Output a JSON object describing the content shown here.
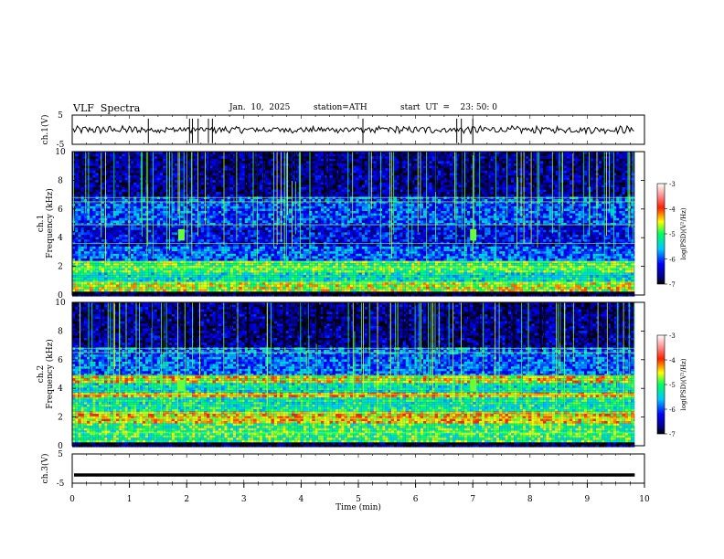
{
  "header": {
    "title": "VLF  Spectra",
    "date": "Jan.  10,  2025",
    "station": "station=ATH",
    "start": "start  UT  =    23: 50: 0"
  },
  "chart_data": [
    {
      "type": "line",
      "panel": "ch1-waveform",
      "ylabel": "ch.1(V)",
      "ylim": [
        -5,
        5
      ],
      "yticks": [
        "5",
        "-5"
      ],
      "xlim": [
        0,
        10
      ],
      "x_data_end_min": 9.83,
      "baseline_v": 0.0,
      "noise_amplitude_v": 1.0,
      "spikes_min": [
        1.33,
        2.05,
        2.1,
        2.2,
        2.38,
        2.45,
        5.08,
        6.72,
        6.8,
        7.0
      ]
    },
    {
      "type": "heatmap",
      "panel": "ch1-spectrogram",
      "ylabel": "ch.1\nFrequency  (kHz)",
      "ylim": [
        0,
        10
      ],
      "yticks": [
        "0",
        "2",
        "4",
        "6",
        "8",
        "10"
      ],
      "xlim": [
        0,
        10
      ],
      "x_data_end_min": 9.83,
      "colorbar": {
        "label": "log(PSD)(V²/Hz)",
        "range": [
          -7,
          -3
        ],
        "ticks": [
          "-3",
          "-4",
          "-5",
          "-6",
          "-7"
        ]
      },
      "bands_khz": [
        {
          "f": [
            0,
            0.25
          ],
          "log_psd": -7
        },
        {
          "f": [
            0.25,
            0.9
          ],
          "log_psd": -4.6
        },
        {
          "f": [
            0.9,
            1.5
          ],
          "log_psd": -5.3
        },
        {
          "f": [
            1.5,
            2.4
          ],
          "log_psd": -4.9
        },
        {
          "f": [
            2.4,
            3.3
          ],
          "log_psd": -5.9
        },
        {
          "f": [
            3.3,
            4.8
          ],
          "log_psd": -6.3
        },
        {
          "f": [
            4.8,
            6.8
          ],
          "log_psd": -6.0
        },
        {
          "f": [
            6.8,
            10
          ],
          "log_psd": -6.6
        }
      ],
      "bursts_min": [
        1.9,
        7.0
      ]
    },
    {
      "type": "heatmap",
      "panel": "ch2-spectrogram",
      "ylabel": "ch.2\nFrequency  (kHz)",
      "ylim": [
        0,
        10
      ],
      "yticks": [
        "0",
        "2",
        "4",
        "6",
        "8",
        "10"
      ],
      "xlim": [
        0,
        10
      ],
      "x_data_end_min": 9.83,
      "colorbar": {
        "label": "log(PSD)(V²/Hz)",
        "range": [
          -7,
          -3
        ],
        "ticks": [
          "-3",
          "-4",
          "-5",
          "-6",
          "-7"
        ]
      },
      "bands_khz": [
        {
          "f": [
            0,
            0.3
          ],
          "log_psd": -7
        },
        {
          "f": [
            0.3,
            1.6
          ],
          "log_psd": -5.0
        },
        {
          "f": [
            1.6,
            2.3
          ],
          "log_psd": -4.4
        },
        {
          "f": [
            2.3,
            3.4
          ],
          "log_psd": -5.2
        },
        {
          "f": [
            3.4,
            3.7
          ],
          "log_psd": -4.3
        },
        {
          "f": [
            3.7,
            4.4
          ],
          "log_psd": -5.3
        },
        {
          "f": [
            4.4,
            4.8
          ],
          "log_psd": -4.5
        },
        {
          "f": [
            4.8,
            6.8
          ],
          "log_psd": -5.9
        },
        {
          "f": [
            6.8,
            10
          ],
          "log_psd": -6.6
        }
      ],
      "bursts_min": [
        1.9,
        7.0
      ]
    },
    {
      "type": "line",
      "panel": "ch3-waveform",
      "ylabel": "ch.3(V)",
      "ylim": [
        -5,
        5
      ],
      "yticks": [
        "5",
        "-5"
      ],
      "xlim": [
        0,
        10
      ],
      "x_data_end_min": 9.83,
      "level_v": -2.2,
      "xlabel": "Time  (min)",
      "xticks": [
        "0",
        "1",
        "2",
        "3",
        "4",
        "5",
        "6",
        "7",
        "8",
        "9",
        "10"
      ]
    }
  ]
}
